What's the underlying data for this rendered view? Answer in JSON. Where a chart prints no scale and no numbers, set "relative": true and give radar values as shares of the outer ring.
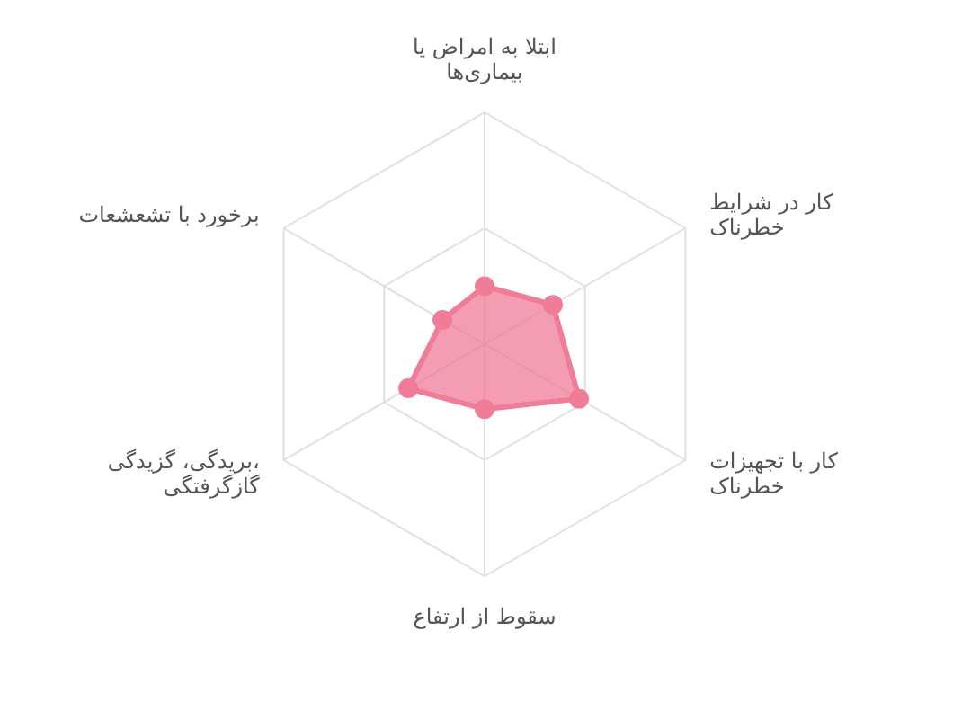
{
  "chart_data": {
    "type": "radar",
    "relative": true,
    "grid": true,
    "marker": "circle",
    "categories": [
      "ابتلا به امراض یا بیماری‌ها",
      "کار در شرایط خطرناک",
      "کار با تجهیزات خطرناک",
      "سقوط از ارتفاع",
      "بریدگی، گزیدگی، گازگرفتگی",
      "برخورد با تشعشعات"
    ],
    "series": [
      {
        "color": "#f07c98",
        "values": [
          0.25,
          0.34,
          0.47,
          0.28,
          0.38,
          0.21
        ]
      }
    ]
  }
}
